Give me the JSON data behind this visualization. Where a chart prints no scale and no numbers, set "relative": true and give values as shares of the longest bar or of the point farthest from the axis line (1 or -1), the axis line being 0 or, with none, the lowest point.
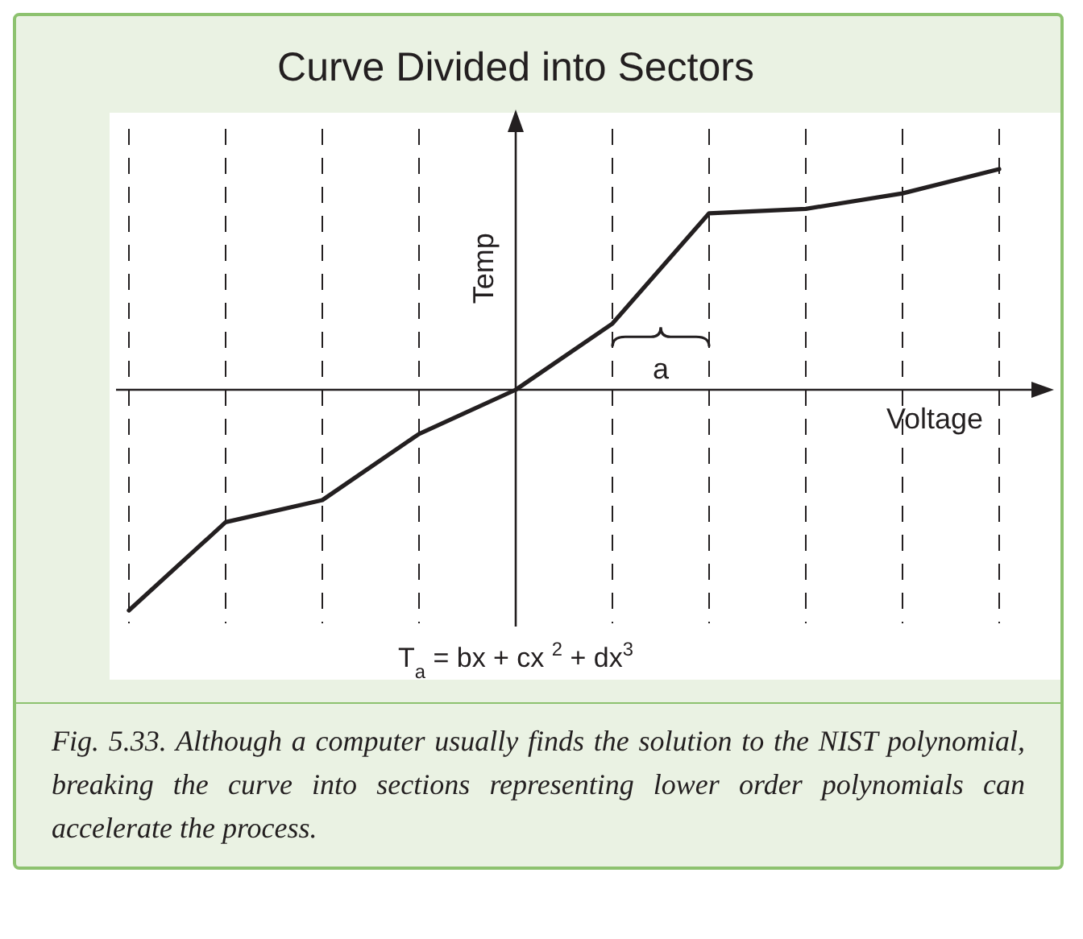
{
  "chart_data": {
    "type": "line",
    "title": "Curve Divided into Sectors",
    "xlabel": "Voltage",
    "ylabel": "Temp",
    "relative": true,
    "grid": "x",
    "marker": "none",
    "line_style": "solid",
    "categories": [
      null,
      null,
      null,
      null,
      null,
      null,
      null,
      null,
      null,
      null
    ],
    "series": [
      {
        "color": "#231f20",
        "values": [
          -1,
          -0.6,
          -0.5,
          -0.2,
          0,
          0.3,
          0.8,
          0.82,
          0.89,
          1
        ]
      }
    ],
    "annotations": [
      "a",
      "T$_{a}$ = bx + cx $^{2}$ + dx$^{3}$",
      "Fig. 5.33. Although a computer usually finds the solution to the NIST polynomial, breaking the curve into sections representing lower order polynomials can accelerate the process."
    ]
  }
}
